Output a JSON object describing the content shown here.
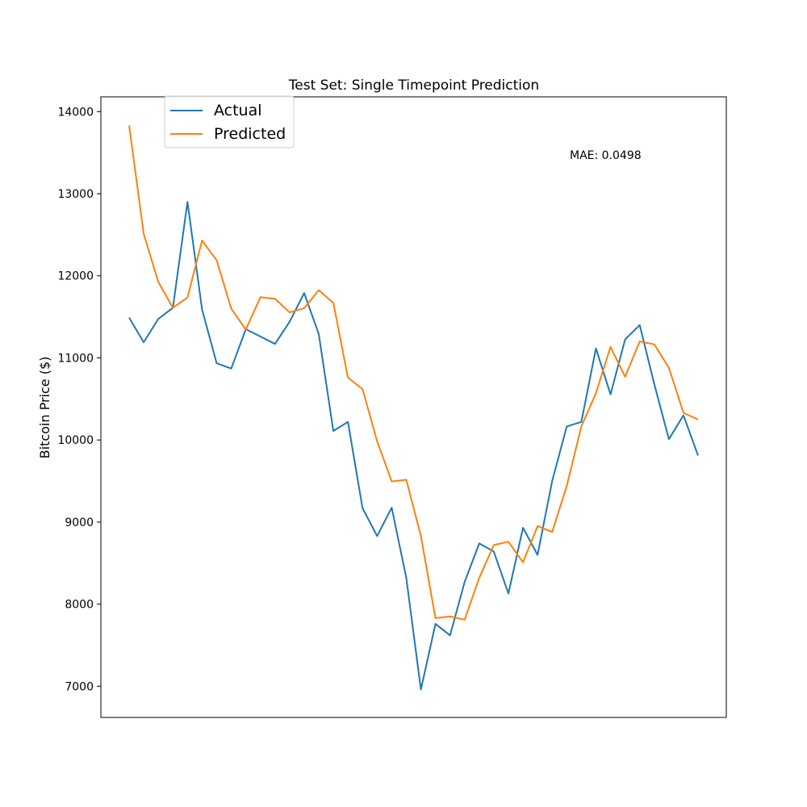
{
  "chart_data": {
    "type": "line",
    "title": "Test Set: Single Timepoint Prediction",
    "xlabel": "",
    "ylabel": "Bitcoin Price ($)",
    "ylim": [
      6620,
      14180
    ],
    "y_ticks": [
      7000,
      8000,
      9000,
      10000,
      11000,
      12000,
      13000,
      14000
    ],
    "x_ticks_visible": false,
    "grid": false,
    "legend_position": "top-left",
    "annotation": "MAE: 0.0498",
    "x": [
      0,
      1,
      2,
      3,
      4,
      5,
      6,
      7,
      8,
      9,
      10,
      11,
      12,
      13,
      14,
      15,
      16,
      17,
      18,
      19,
      20,
      21,
      22,
      23,
      24,
      25,
      26,
      27,
      28,
      29,
      30,
      31,
      32,
      33,
      34,
      35,
      36,
      37,
      38,
      39
    ],
    "series": [
      {
        "name": "Actual",
        "color": "#1f77b4",
        "values": [
          11490,
          11190,
          11475,
          11610,
          12900,
          11590,
          10935,
          10870,
          11350,
          11260,
          11170,
          11440,
          11790,
          11290,
          10110,
          10220,
          9170,
          8830,
          9175,
          8320,
          6960,
          7760,
          7620,
          8270,
          8740,
          8640,
          8130,
          8930,
          8600,
          9500,
          10165,
          10220,
          11115,
          10555,
          11225,
          11400,
          10680,
          10010,
          10300,
          9810
        ]
      },
      {
        "name": "Predicted",
        "color": "#ff7f0e",
        "values": [
          13830,
          12510,
          11925,
          11610,
          11735,
          12430,
          12190,
          11600,
          11345,
          11740,
          11720,
          11555,
          11605,
          11825,
          11670,
          10760,
          10620,
          9985,
          9495,
          9515,
          8830,
          7830,
          7850,
          7810,
          8320,
          8720,
          8760,
          8510,
          8950,
          8880,
          9440,
          10165,
          10570,
          11135,
          10770,
          11200,
          11165,
          10880,
          10330,
          10250
        ]
      }
    ]
  }
}
